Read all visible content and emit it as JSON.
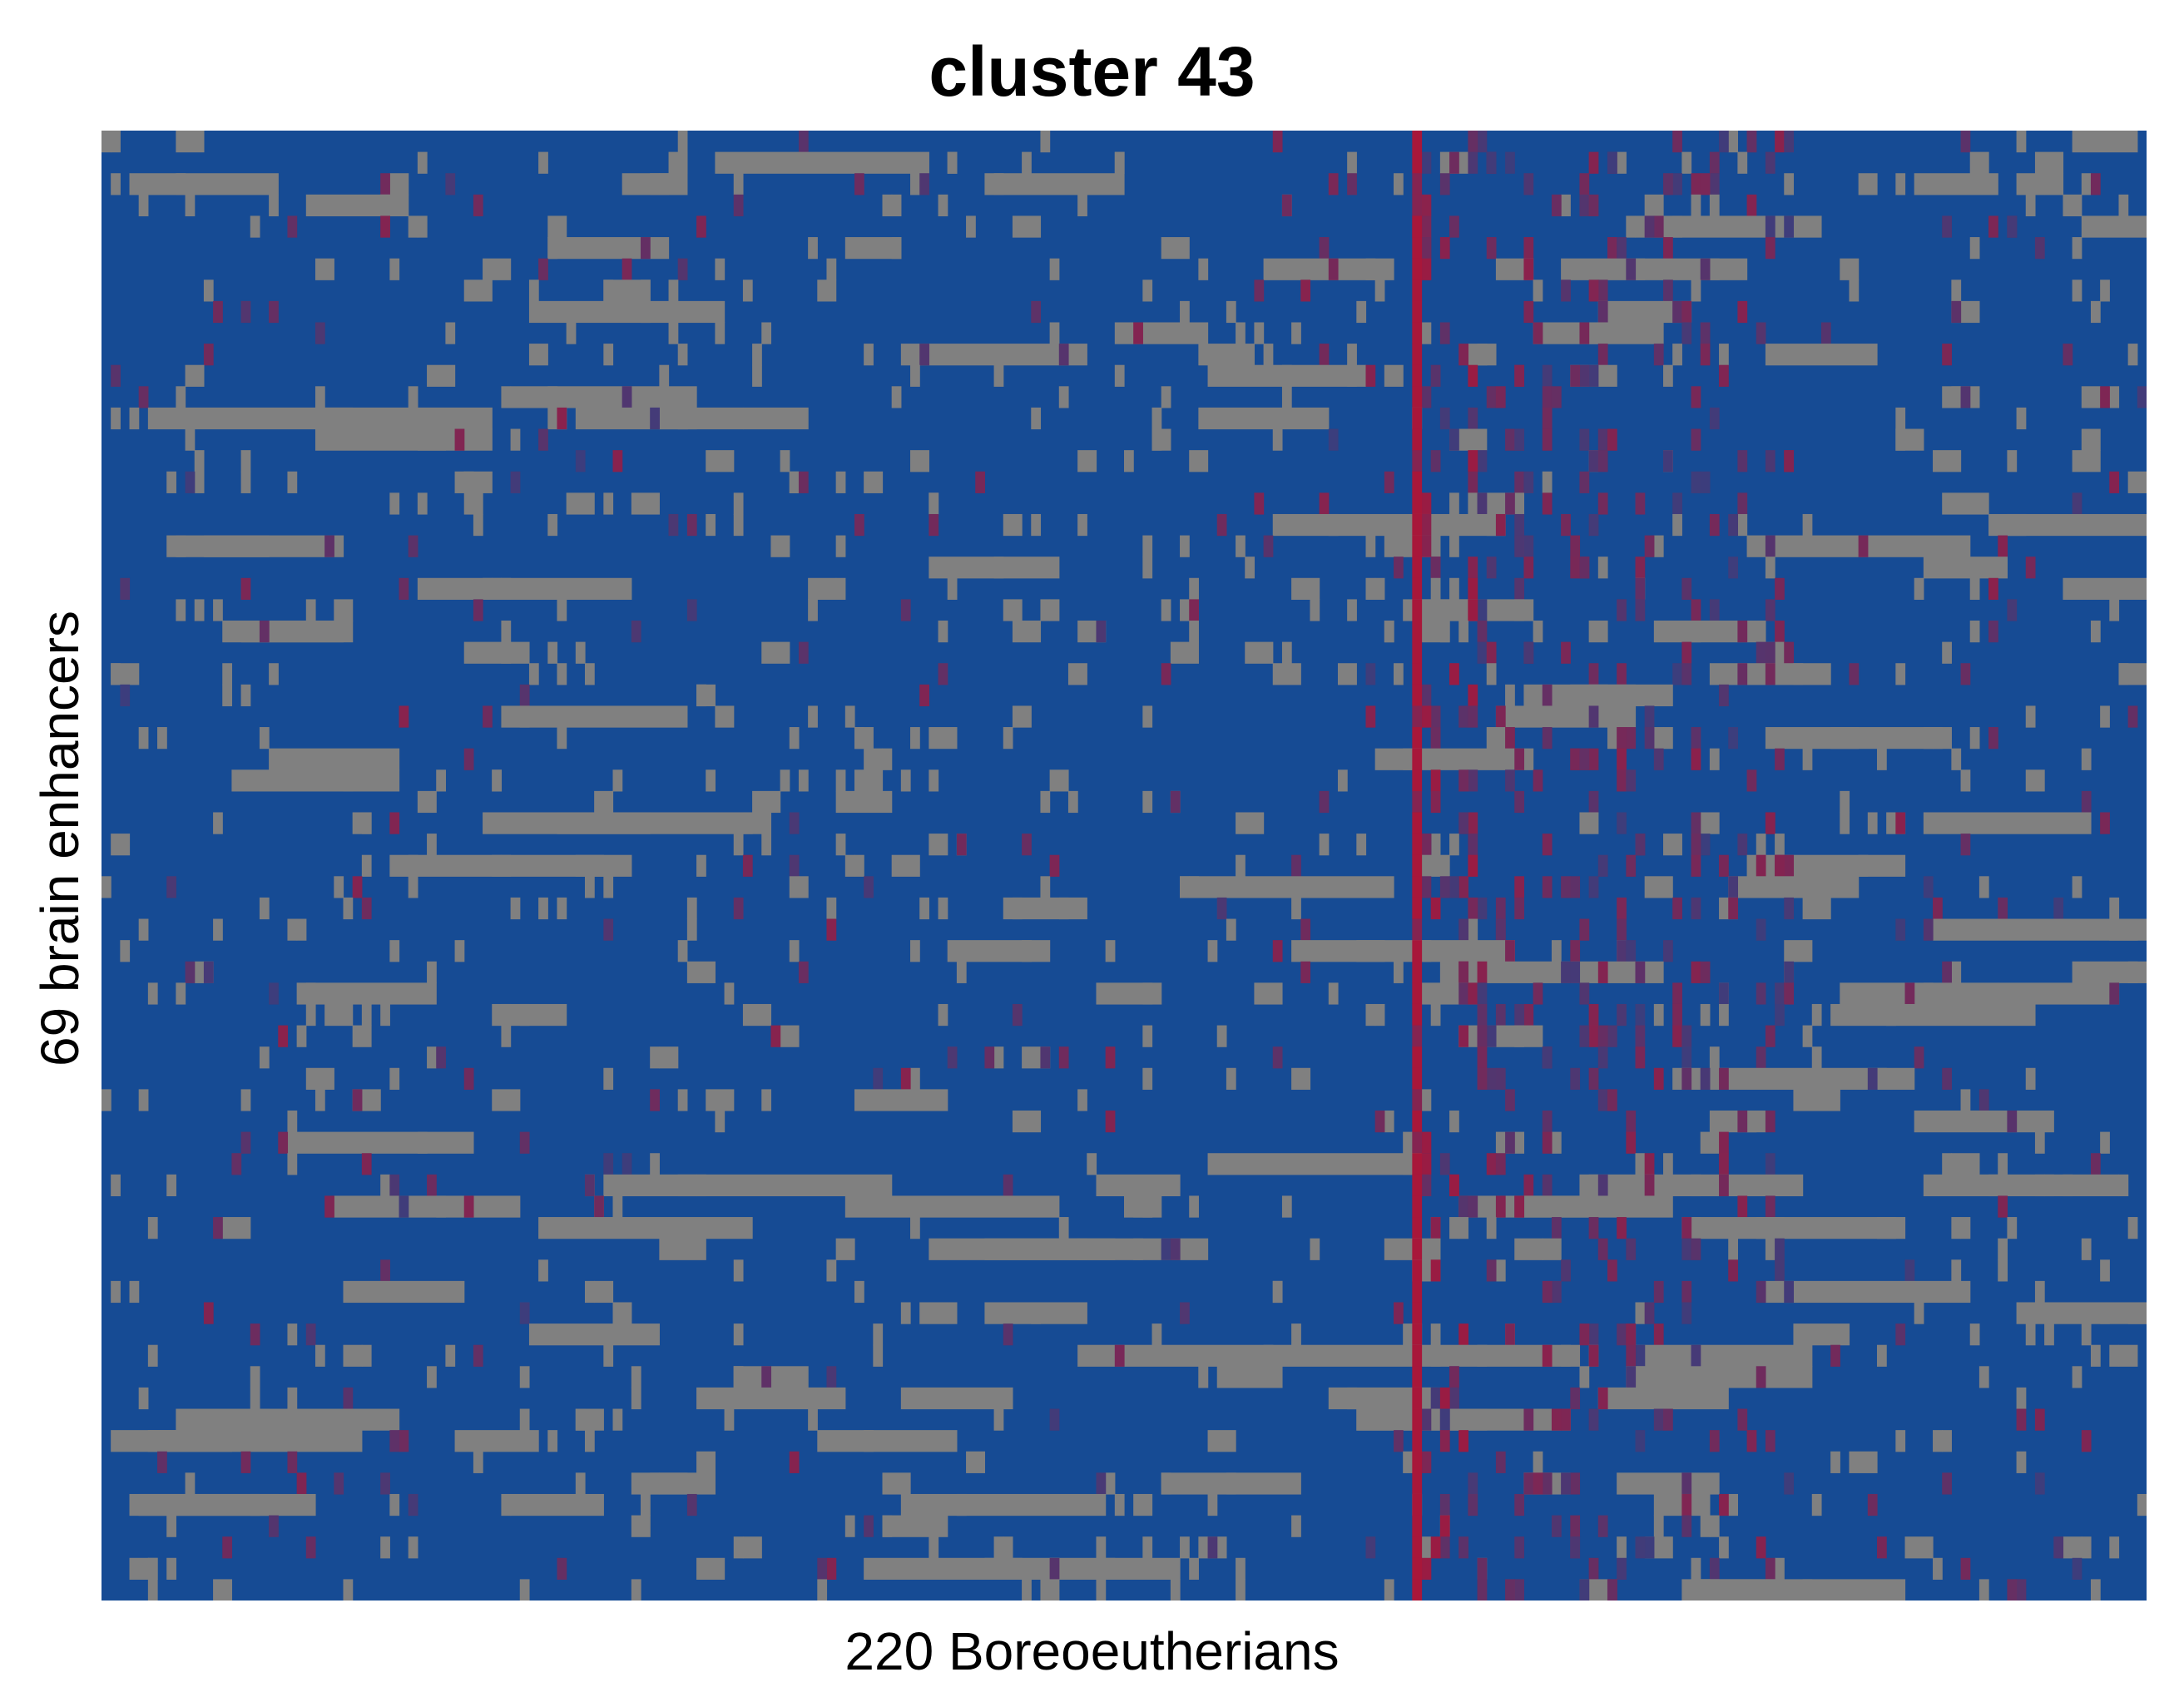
{
  "chart_data": {
    "type": "heatmap",
    "title": "cluster 43",
    "xlabel": "220 Boreoeutherians",
    "ylabel": "69 brain enhancers",
    "n_columns": 220,
    "n_rows": 69,
    "colors": {
      "background": "#ffffff",
      "high": "#164B94",
      "low": "#A8173A",
      "missing": "#808080"
    },
    "encoding": "gray = missing; blue = high; red = low; purple = intermediate",
    "prominent_features": {
      "red_column_index": 141,
      "description": "a single column near 64% of the width is red in nearly every row; purple/red cells cluster in columns right of it; long horizontal gray runs of missing data throughout"
    },
    "note": "individual cell values are too dense to transcribe; the matrix below is an approximate reconstruction of the visible pattern"
  }
}
